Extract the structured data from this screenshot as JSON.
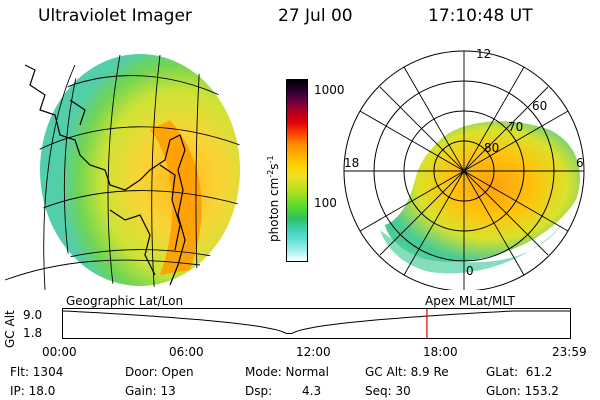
{
  "header": {
    "title": "Ultraviolet Imager",
    "date": "27 Jul 00",
    "time": "17:10:48 UT"
  },
  "colorbar": {
    "unit": "photon cm",
    "unit_sup1": "-2",
    "unit_mid": "s",
    "unit_sup2": "-1",
    "ticks": [
      "1000",
      "100"
    ],
    "colors": [
      "#000000",
      "#2a0030",
      "#6a0040",
      "#b00020",
      "#e00010",
      "#ff4000",
      "#ff8800",
      "#ffb000",
      "#ffd000",
      "#f0e020",
      "#c8e020",
      "#90e020",
      "#50d830",
      "#30c060",
      "#40d0b0",
      "#60e0d8",
      "#a0f0f0",
      "#ffffff"
    ]
  },
  "polar": {
    "lat_labels": [
      "80",
      "70",
      "60"
    ],
    "mlt_labels": [
      "12",
      "18",
      "6",
      "0"
    ]
  },
  "panels": {
    "left_label": "Geographic Lat/Lon",
    "right_label": "Apex MLat/MLT"
  },
  "altitude_plot": {
    "ylabel": "GC Alt",
    "yticks": [
      "9.0",
      "1.8"
    ],
    "xticks": [
      "00:00",
      "06:00",
      "12:00",
      "18:00",
      "23:59"
    ],
    "marker_time": "17:10:48"
  },
  "info": {
    "flt": "Flt: 1304",
    "ip": "IP: 18.0",
    "door": "Door: Open",
    "gain": "Gain: 13",
    "mode": "Mode: Normal",
    "dsp_label": "Dsp:",
    "dsp_value": "4.3",
    "gc_alt": "GC Alt: 8.9 Re",
    "seq": "Seq: 30",
    "glat": "GLat:  61.2",
    "glon": "GLon: 153.2"
  }
}
